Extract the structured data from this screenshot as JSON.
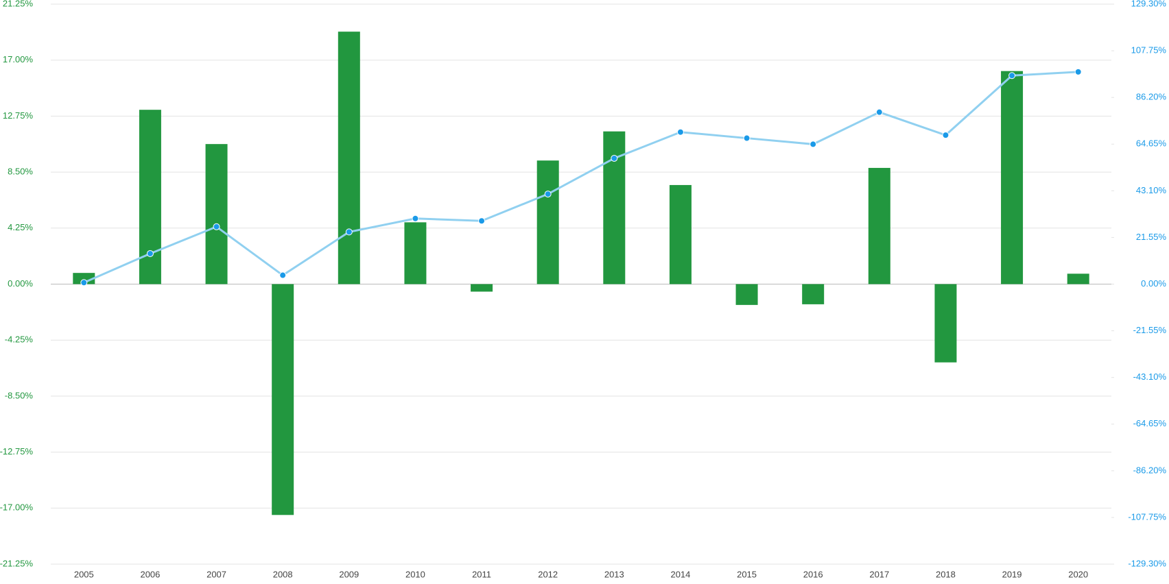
{
  "chart_data": {
    "type": "bar-line",
    "categories": [
      "2005",
      "2006",
      "2007",
      "2008",
      "2009",
      "2010",
      "2011",
      "2012",
      "2013",
      "2014",
      "2015",
      "2016",
      "2017",
      "2018",
      "2019",
      "2020"
    ],
    "series": [
      {
        "type": "bar",
        "color": "#22973f",
        "values": [
          0.85,
          13.23,
          10.63,
          -17.52,
          19.16,
          4.69,
          -0.57,
          9.38,
          11.59,
          7.52,
          -1.58,
          -1.53,
          8.82,
          -5.94,
          16.17,
          0.79
        ]
      },
      {
        "type": "line",
        "axis": "y2",
        "color": "#90d0f0",
        "marker_color": "#1a9ae8",
        "values": [
          0.7,
          14.1,
          26.5,
          4.1,
          24.1,
          30.3,
          29.2,
          41.6,
          58.1,
          70.2,
          67.4,
          64.6,
          79.4,
          68.8,
          96.3,
          98.0
        ]
      }
    ],
    "ylim": [
      -21.25,
      21.25
    ],
    "yticks": [
      {
        "value": -21.25,
        "label": "-21.25%"
      },
      {
        "value": -17,
        "label": "-17.00%"
      },
      {
        "value": -12.75,
        "label": "-12.75%"
      },
      {
        "value": -8.5,
        "label": "-8.50%"
      },
      {
        "value": -4.25,
        "label": "-4.25%"
      },
      {
        "value": 0,
        "label": "0.00%"
      },
      {
        "value": 4.25,
        "label": "4.25%"
      },
      {
        "value": 8.5,
        "label": "8.50%"
      },
      {
        "value": 12.75,
        "label": "12.75%"
      },
      {
        "value": 17,
        "label": "17.00%"
      },
      {
        "value": 21.25,
        "label": "21.25%"
      }
    ],
    "y2lim": [
      -129.3,
      129.3
    ],
    "y2ticks": [
      {
        "value": -129.3,
        "label": "-129.30%"
      },
      {
        "value": -107.75,
        "label": "-107.75%"
      },
      {
        "value": -86.2,
        "label": "-86.20%"
      },
      {
        "value": -64.65,
        "label": "-64.65%"
      },
      {
        "value": -43.1,
        "label": "-43.10%"
      },
      {
        "value": -21.55,
        "label": "-21.55%"
      },
      {
        "value": 0,
        "label": "0.00%"
      },
      {
        "value": 21.55,
        "label": "21.55%"
      },
      {
        "value": 43.1,
        "label": "43.10%"
      },
      {
        "value": 64.65,
        "label": "64.65%"
      },
      {
        "value": 86.2,
        "label": "86.20%"
      },
      {
        "value": 107.75,
        "label": "107.75%"
      },
      {
        "value": 129.3,
        "label": "129.30%"
      }
    ],
    "ytick_color": "#22973f",
    "y2tick_color": "#1a9ae8",
    "grid": true
  }
}
